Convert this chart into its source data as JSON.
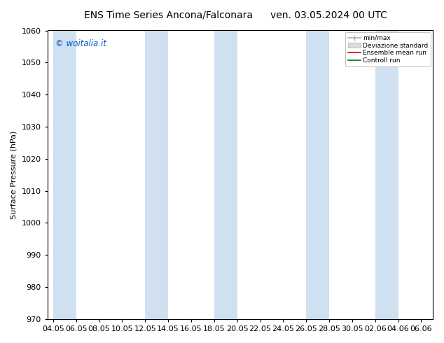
{
  "title_left": "ENS Time Series Ancona/Falconara",
  "title_right": "ven. 03.05.2024 00 UTC",
  "ylabel": "Surface Pressure (hPa)",
  "ylim": [
    970,
    1060
  ],
  "yticks": [
    970,
    980,
    990,
    1000,
    1010,
    1020,
    1030,
    1040,
    1050,
    1060
  ],
  "xtick_labels": [
    "04.05",
    "06.05",
    "08.05",
    "10.05",
    "12.05",
    "14.05",
    "16.05",
    "18.05",
    "20.05",
    "22.05",
    "24.05",
    "26.05",
    "28.05",
    "30.05",
    "02.06",
    "04.06",
    "06.06"
  ],
  "background_color": "#ffffff",
  "plot_bg_color": "#ffffff",
  "band_color": "#cfe0f0",
  "watermark": "© woitalia.it",
  "watermark_color": "#0055cc",
  "legend_items": [
    "min/max",
    "Deviazione standard",
    "Ensemble mean run",
    "Controll run"
  ],
  "title_fontsize": 10,
  "axis_fontsize": 8,
  "tick_fontsize": 8
}
